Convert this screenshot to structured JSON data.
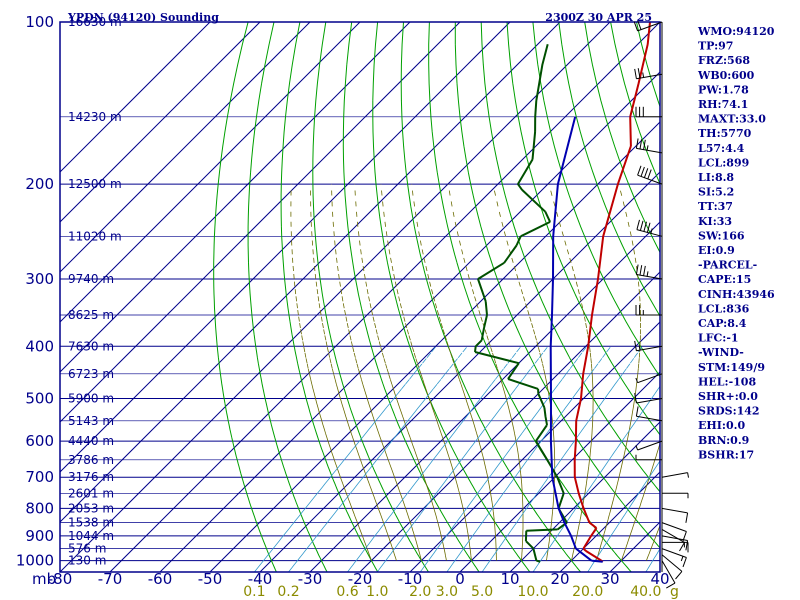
{
  "header": {
    "title": "YPDN (94120) Sounding",
    "time": "2300Z 30 APR 25"
  },
  "colors": {
    "frame": "#00008b",
    "temperature": "#c00000",
    "dewpoint": "#005000",
    "parcel": "#0000b0",
    "dry_adiabat": "#00a000",
    "moist_adiabat": "#6b6b00",
    "mixing_ratio": "#3399cc",
    "wind": "#000000"
  },
  "chart_data": {
    "type": "line",
    "x_axis_prefix": "mb",
    "xlim": [
      -80,
      40
    ],
    "x_ticks": [
      -80,
      -70,
      -60,
      -50,
      -40,
      -30,
      -20,
      -10,
      0,
      10,
      20,
      30,
      40
    ],
    "x_tick_labels": [
      "-80",
      "-70",
      "-60",
      "-50",
      "-40",
      "-30",
      "-20",
      "-10",
      "0",
      "10",
      "20",
      "30",
      "40"
    ],
    "pressure_levels": [
      100,
      200,
      300,
      400,
      500,
      600,
      700,
      800,
      900,
      1000
    ],
    "height_labels": [
      {
        "p": 100,
        "label": "16630 m"
      },
      {
        "p": 150,
        "label": "14230 m"
      },
      {
        "p": 200,
        "label": "12500 m"
      },
      {
        "p": 250,
        "label": "11020 m"
      },
      {
        "p": 300,
        "label": "9740 m"
      },
      {
        "p": 350,
        "label": "8625 m"
      },
      {
        "p": 400,
        "label": "7630 m"
      },
      {
        "p": 450,
        "label": "6723 m"
      },
      {
        "p": 500,
        "label": "5900 m"
      },
      {
        "p": 550,
        "label": "5143 m"
      },
      {
        "p": 600,
        "label": "4440 m"
      },
      {
        "p": 650,
        "label": "3786 m"
      },
      {
        "p": 700,
        "label": "3176 m"
      },
      {
        "p": 750,
        "label": "2601 m"
      },
      {
        "p": 800,
        "label": "2053 m"
      },
      {
        "p": 850,
        "label": "1538 m"
      },
      {
        "p": 900,
        "label": "1044 m"
      },
      {
        "p": 950,
        "label": "576 m"
      },
      {
        "p": 1000,
        "label": "130 m"
      }
    ],
    "mixing_ratio_labels": [
      {
        "w": 0.1,
        "label": "0.1"
      },
      {
        "w": 0.2,
        "label": "0.2"
      },
      {
        "w": 0.6,
        "label": "0.6"
      },
      {
        "w": 1.0,
        "label": "1.0"
      },
      {
        "w": 2.0,
        "label": "2.0"
      },
      {
        "w": 3.0,
        "label": "3.0"
      },
      {
        "w": 5.0,
        "label": "5.0"
      },
      {
        "w": 10.0,
        "label": "10.0"
      },
      {
        "w": 20.0,
        "label": "20.0"
      },
      {
        "w": 40.0,
        "label": "40.0"
      }
    ],
    "mixing_ratio_unit": "g",
    "series": [
      {
        "key": "temperature",
        "points": [
          [
            1005,
            26.5
          ],
          [
            1000,
            26
          ],
          [
            960,
            21
          ],
          [
            950,
            20
          ],
          [
            900,
            19
          ],
          [
            870,
            18.5
          ],
          [
            850,
            16
          ],
          [
            800,
            12
          ],
          [
            750,
            8
          ],
          [
            700,
            4
          ],
          [
            650,
            0.5
          ],
          [
            600,
            -3
          ],
          [
            550,
            -7
          ],
          [
            500,
            -10.5
          ],
          [
            450,
            -15
          ],
          [
            400,
            -19.5
          ],
          [
            350,
            -25
          ],
          [
            300,
            -31
          ],
          [
            250,
            -38.5
          ],
          [
            200,
            -46
          ],
          [
            170,
            -51
          ],
          [
            150,
            -57
          ],
          [
            130,
            -62
          ],
          [
            110,
            -68
          ],
          [
            100,
            -72
          ]
        ]
      },
      {
        "key": "dewpoint",
        "points": [
          [
            1005,
            14
          ],
          [
            1000,
            13
          ],
          [
            950,
            10
          ],
          [
            920,
            7
          ],
          [
            880,
            5
          ],
          [
            875,
            11
          ],
          [
            850,
            11.5
          ],
          [
            800,
            7
          ],
          [
            750,
            5
          ],
          [
            700,
            0.5
          ],
          [
            650,
            -5
          ],
          [
            600,
            -11
          ],
          [
            560,
            -12
          ],
          [
            540,
            -14
          ],
          [
            520,
            -16
          ],
          [
            490,
            -20
          ],
          [
            480,
            -21
          ],
          [
            460,
            -29
          ],
          [
            430,
            -30
          ],
          [
            410,
            -41
          ],
          [
            400,
            -42
          ],
          [
            390,
            -42
          ],
          [
            370,
            -44
          ],
          [
            350,
            -46
          ],
          [
            330,
            -49
          ],
          [
            300,
            -55
          ],
          [
            280,
            -53
          ],
          [
            260,
            -54
          ],
          [
            250,
            -55
          ],
          [
            235,
            -52
          ],
          [
            225,
            -55
          ],
          [
            205,
            -64
          ],
          [
            200,
            -66
          ],
          [
            180,
            -68
          ],
          [
            160,
            -73
          ],
          [
            150,
            -76
          ],
          [
            140,
            -79
          ],
          [
            120,
            -85
          ],
          [
            110,
            -88
          ]
        ]
      },
      {
        "key": "parcel",
        "points": [
          [
            1005,
            26.5
          ],
          [
            1000,
            24
          ],
          [
            950,
            18.5
          ],
          [
            900,
            15
          ],
          [
            850,
            11
          ],
          [
            800,
            7
          ],
          [
            700,
            -0.5
          ],
          [
            600,
            -8
          ],
          [
            500,
            -16.5
          ],
          [
            400,
            -27
          ],
          [
            350,
            -33
          ],
          [
            300,
            -40
          ],
          [
            250,
            -48.5
          ],
          [
            200,
            -58
          ],
          [
            150,
            -68
          ]
        ]
      }
    ],
    "wind": {
      "pressures": [
        1000,
        975,
        950,
        925,
        900,
        875,
        850,
        800,
        750,
        700,
        650,
        600,
        550,
        500,
        450,
        400,
        350,
        300,
        250,
        200,
        175,
        150,
        125,
        100
      ],
      "directions": [
        150,
        130,
        110,
        90,
        100,
        120,
        110,
        100,
        90,
        80,
        270,
        250,
        280,
        260,
        250,
        260,
        270,
        280,
        285,
        290,
        280,
        270,
        260,
        250
      ],
      "speeds": [
        12,
        14,
        15,
        18,
        14,
        10,
        12,
        10,
        8,
        5,
        5,
        5,
        10,
        10,
        5,
        15,
        25,
        35,
        45,
        40,
        35,
        30,
        25,
        20
      ]
    }
  },
  "indices": [
    "WMO:94120",
    "TP:97",
    "FRZ:568",
    "WB0:600",
    "PW:1.78",
    "RH:74.1",
    "MAXT:33.0",
    "TH:5770",
    "L57:4.4",
    "LCL:899",
    "LI:8.8",
    "SI:5.2",
    "TT:37",
    "KI:33",
    "SW:166",
    "EI:0.9",
    "-PARCEL-",
    "CAPE:15",
    "CINH:43946",
    "LCL:836",
    "CAP:8.4",
    "LFC:-1",
    "-WIND-",
    "STM:149/9",
    "HEL:-108",
    "SHR+:0.0",
    "SRDS:142",
    "EHI:0.0",
    "BRN:0.9",
    "BSHR:17"
  ]
}
